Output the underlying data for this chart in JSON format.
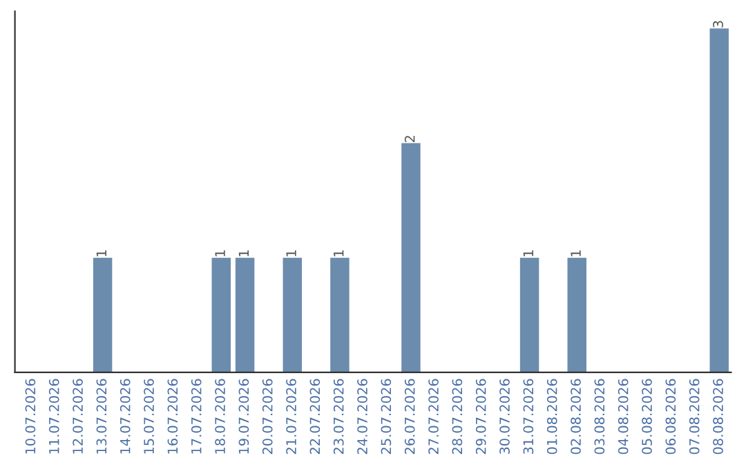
{
  "chart_data": {
    "type": "bar",
    "categories": [
      "10.07.2026",
      "11.07.2026",
      "12.07.2026",
      "13.07.2026",
      "14.07.2026",
      "15.07.2026",
      "16.07.2026",
      "17.07.2026",
      "18.07.2026",
      "19.07.2026",
      "20.07.2026",
      "21.07.2026",
      "22.07.2026",
      "23.07.2026",
      "24.07.2026",
      "25.07.2026",
      "26.07.2026",
      "27.07.2026",
      "28.07.2026",
      "29.07.2026",
      "30.07.2026",
      "31.07.2026",
      "01.08.2026",
      "02.08.2026",
      "03.08.2026",
      "04.08.2026",
      "05.08.2026",
      "06.08.2026",
      "07.08.2026",
      "08.08.2026"
    ],
    "values": [
      0,
      0,
      0,
      1,
      0,
      0,
      0,
      0,
      1,
      1,
      0,
      1,
      0,
      1,
      0,
      0,
      2,
      0,
      0,
      0,
      0,
      1,
      0,
      1,
      0,
      0,
      0,
      0,
      0,
      3
    ],
    "value_labels": [
      null,
      null,
      null,
      "1",
      null,
      null,
      null,
      null,
      "1",
      "1",
      null,
      "1",
      null,
      "1",
      null,
      null,
      "2",
      null,
      null,
      null,
      null,
      "1",
      null,
      "1",
      null,
      null,
      null,
      null,
      null,
      "3"
    ],
    "color": "#6b8cad",
    "tick_labels": "x",
    "grid": false,
    "legend": false
  }
}
